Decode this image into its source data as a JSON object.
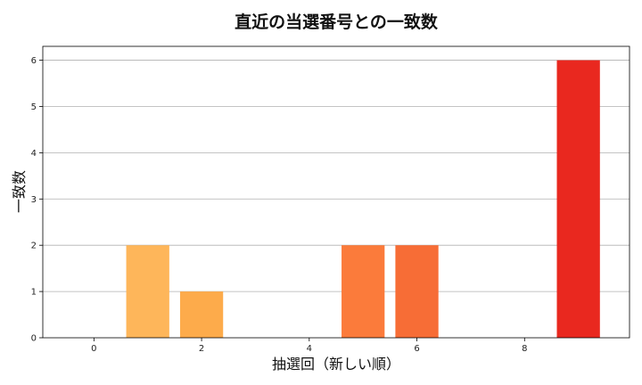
{
  "chart_data": {
    "type": "bar",
    "title": "直近の当選番号との一致数",
    "xlabel": "抽選回（新しい順）",
    "ylabel": "一致数",
    "x": [
      0,
      1,
      2,
      3,
      4,
      5,
      6,
      7,
      8,
      9
    ],
    "values": [
      0,
      2,
      1,
      0,
      0,
      2,
      2,
      0,
      0,
      6
    ],
    "xlim": [
      -0.95,
      9.95
    ],
    "ylim": [
      0,
      6.3
    ],
    "xticks": [
      0,
      2,
      4,
      6,
      8
    ],
    "yticks": [
      0,
      1,
      2,
      3,
      4,
      5,
      6
    ],
    "grid": "y-axis",
    "colors": {
      "1": "#feb65a",
      "2": "#fdab4b",
      "5": "#fb7b3b",
      "6": "#f76d36",
      "9": "#e9281f"
    }
  }
}
